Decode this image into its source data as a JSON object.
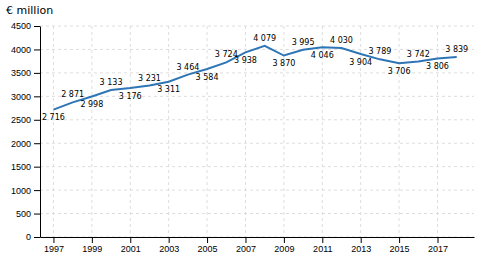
{
  "chart_data": {
    "type": "line",
    "ylabel": "€ million",
    "x": [
      1997,
      1998,
      1999,
      2000,
      2001,
      2002,
      2003,
      2004,
      2005,
      2006,
      2007,
      2008,
      2009,
      2010,
      2011,
      2012,
      2013,
      2014,
      2015,
      2016,
      2017,
      2018
    ],
    "values": [
      2716,
      2871,
      2998,
      3133,
      3176,
      3231,
      3311,
      3464,
      3584,
      3724,
      3938,
      4079,
      3870,
      3995,
      4046,
      4030,
      3904,
      3789,
      3706,
      3742,
      3806,
      3839
    ],
    "value_labels": [
      "2 716",
      "2 871",
      "2 998",
      "3 133",
      "3 176",
      "3 231",
      "3 311",
      "3 464",
      "3 584",
      "3 724",
      "3 938",
      "4 079",
      "3 870",
      "3 995",
      "4 046",
      "4 030",
      "3 904",
      "3 789",
      "3 706",
      "3 742",
      "3 806",
      "3 839"
    ],
    "color": "#2e75b6",
    "xlim": [
      1996.3,
      2018.9
    ],
    "ylim": [
      0,
      4500
    ],
    "xticks": [
      1997,
      1999,
      2001,
      2003,
      2005,
      2007,
      2009,
      2011,
      2013,
      2015,
      2017
    ],
    "yticks": [
      0,
      500,
      1000,
      1500,
      2000,
      2500,
      3000,
      3500,
      4000,
      4500
    ],
    "grid": true,
    "data_labels": true
  }
}
